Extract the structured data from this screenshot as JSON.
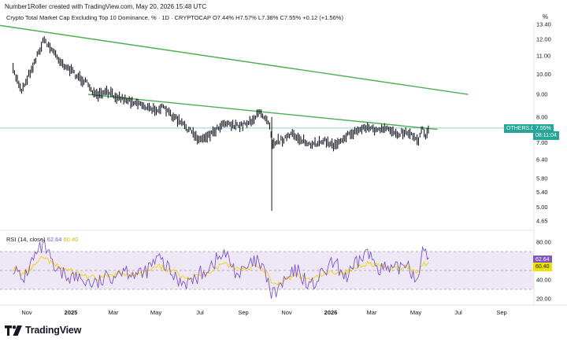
{
  "credit": "Number1Roller created with TradingView.com, May 20, 2026 15:48 UTC",
  "legend": {
    "title": "Crypto Total Market Cap Excluding Top 10 Dominance, % · 1D · CRYPTOCAP",
    "open": "O7.44%",
    "high": "H7.57%",
    "low": "L7.38%",
    "close": "C7.55%",
    "change": "+0.12 (+1.56%)"
  },
  "unit_label": "%",
  "price_badge": {
    "symbol": "OTHERS.D",
    "value": "7.55%",
    "countdown": "08:11:04"
  },
  "rsi": {
    "label": "RSI (14, close)",
    "value": "62.64",
    "ma_value": "60.40",
    "badge_value": "62.64",
    "badge_ma": "60.40"
  },
  "footer": {
    "brand": "TradingView"
  },
  "colors": {
    "candle": "#131722",
    "trendline": "#4caf50",
    "price_line": "#26a69a",
    "badge_bg": "#26a69a",
    "rsi_line": "#7e57c2",
    "rsi_ma": "#f0d400",
    "rsi_band": "#ede7f6"
  },
  "chart_data": [
    {
      "type": "line",
      "name": "price",
      "yscale": "log",
      "ylim": [
        4.5,
        13.4
      ],
      "yticks": [
        "13.40",
        "12.00",
        "11.00",
        "10.00",
        "9.00",
        "8.00",
        "7.00",
        "6.40",
        "5.80",
        "5.40",
        "5.00",
        "4.65"
      ],
      "xticks": [
        "Nov",
        "2025",
        "Mar",
        "May",
        "Jul",
        "Sep",
        "Nov",
        "2026",
        "Mar",
        "May",
        "Jul",
        "Sep"
      ],
      "x": [
        "2024-09-15",
        "2024-10-15",
        "2024-11-10",
        "2024-11-25",
        "2024-12-05",
        "2024-12-20",
        "2025-01-10",
        "2025-01-25",
        "2025-02-05",
        "2025-02-20",
        "2025-03-15",
        "2025-04-07",
        "2025-04-25",
        "2025-05-10",
        "2025-05-30",
        "2025-06-15",
        "2025-07-01",
        "2025-07-20",
        "2025-08-05",
        "2025-08-25",
        "2025-09-15",
        "2025-09-25",
        "2025-10-05",
        "2025-10-10",
        "2025-10-11",
        "2025-10-12",
        "2025-10-25",
        "2025-11-10",
        "2025-11-25",
        "2025-12-05",
        "2025-12-20",
        "2026-01-05",
        "2026-01-20",
        "2026-02-05",
        "2026-02-20",
        "2026-03-10",
        "2026-03-25",
        "2026-04-05",
        "2026-04-20",
        "2026-04-30",
        "2026-05-05",
        "2026-05-10",
        "2026-05-15",
        "2026-05-20"
      ],
      "values": [
        10.2,
        9.2,
        10.5,
        12.0,
        11.4,
        10.6,
        9.9,
        9.5,
        8.9,
        9.1,
        8.8,
        8.6,
        8.3,
        8.4,
        7.9,
        7.5,
        7.1,
        7.4,
        7.8,
        7.6,
        7.9,
        8.2,
        7.9,
        7.6,
        4.9,
        7.0,
        7.1,
        7.3,
        7.05,
        6.85,
        7.1,
        6.9,
        7.2,
        7.4,
        7.6,
        7.45,
        7.5,
        7.35,
        7.4,
        7.2,
        7.1,
        7.6,
        7.3,
        7.55
      ],
      "trendlines": [
        {
          "from": [
            "2024-08-01",
            12.9
          ],
          "to": [
            "2026-07-15",
            9.0
          ]
        },
        {
          "from": [
            "2025-01-25",
            9.0
          ],
          "to": [
            "2026-06-01",
            7.5
          ]
        }
      ],
      "last_price": 7.55
    },
    {
      "type": "line",
      "name": "RSI (14, close)",
      "ylim": [
        20,
        80
      ],
      "yticks": [
        "80.00",
        "40.00",
        "20.00"
      ],
      "bands": [
        70,
        50,
        30
      ],
      "x": [
        "2024-09-15",
        "2024-10-15",
        "2024-11-10",
        "2024-11-25",
        "2024-12-10",
        "2025-01-10",
        "2025-02-05",
        "2025-03-15",
        "2025-04-10",
        "2025-05-05",
        "2025-05-30",
        "2025-06-20",
        "2025-07-15",
        "2025-08-05",
        "2025-08-25",
        "2025-09-20",
        "2025-10-05",
        "2025-10-11",
        "2025-10-25",
        "2025-11-15",
        "2025-12-05",
        "2026-01-05",
        "2026-01-25",
        "2026-02-20",
        "2026-03-10",
        "2026-03-30",
        "2026-04-20",
        "2026-05-01",
        "2026-05-10",
        "2026-05-20"
      ],
      "values": [
        55,
        38,
        62,
        78,
        48,
        42,
        35,
        52,
        44,
        63,
        40,
        38,
        55,
        68,
        45,
        60,
        42,
        22,
        35,
        50,
        33,
        58,
        42,
        70,
        55,
        48,
        60,
        38,
        68,
        62.64
      ],
      "ma": [
        52,
        46,
        54,
        64,
        55,
        47,
        41,
        47,
        46,
        54,
        47,
        42,
        49,
        58,
        52,
        54,
        48,
        34,
        38,
        45,
        40,
        49,
        48,
        58,
        56,
        51,
        55,
        47,
        56,
        60.4
      ]
    }
  ]
}
